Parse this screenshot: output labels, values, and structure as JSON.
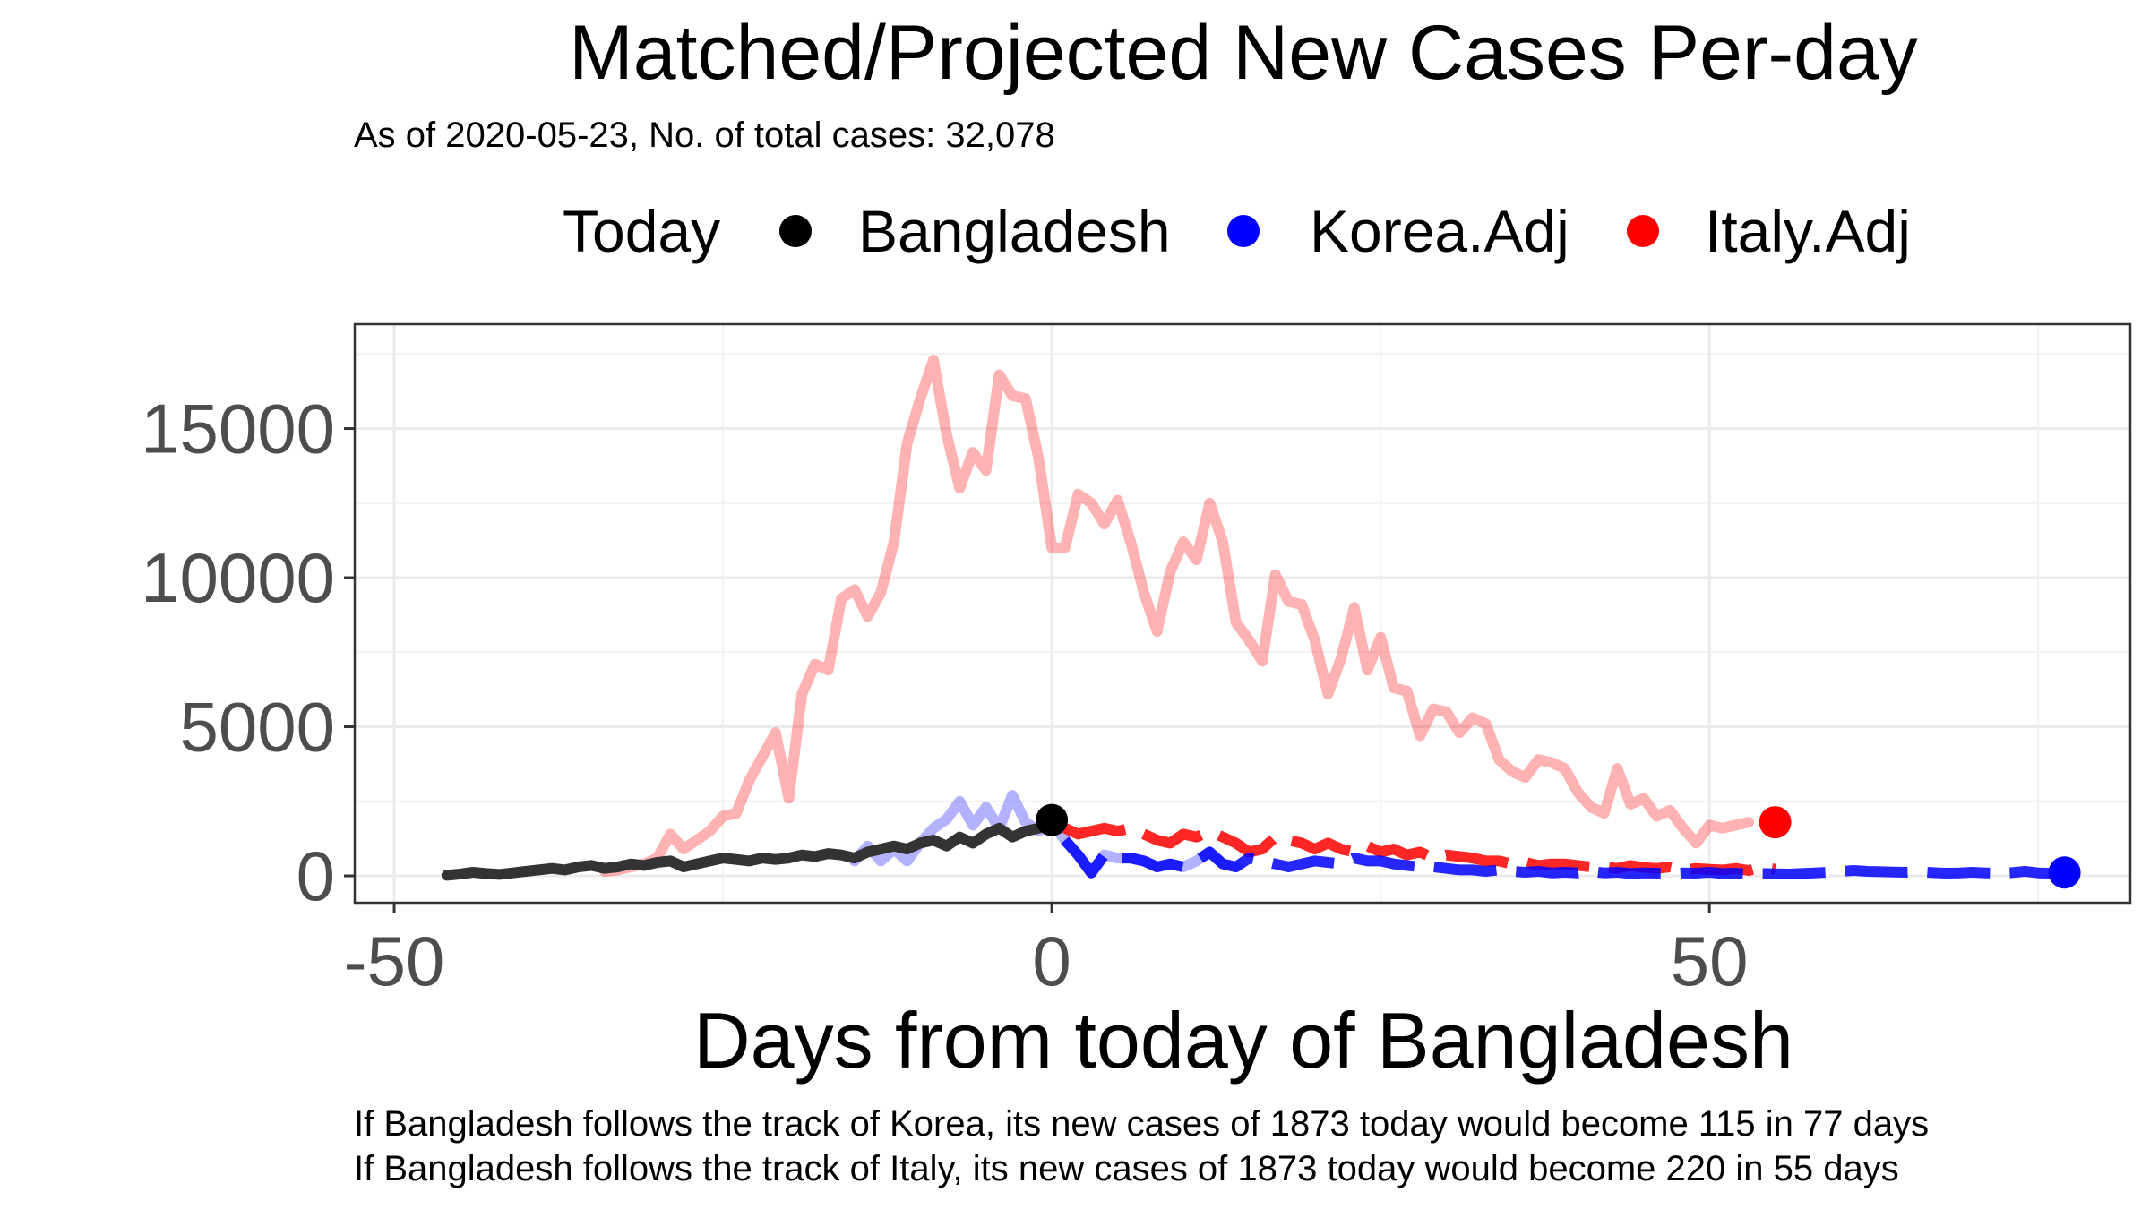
{
  "chart_data": {
    "type": "line",
    "title": "Matched/Projected New Cases Per-day",
    "subtitle": "As of 2020-05-23, No. of total cases: 32,078",
    "xlabel": "Days from today of Bangladesh",
    "ylabel": "",
    "xlim": [
      -53,
      82
    ],
    "ylim": [
      -900,
      18500
    ],
    "x_ticks": [
      -50,
      0,
      50
    ],
    "x_tick_labels": [
      "-50",
      "0",
      "50"
    ],
    "y_ticks": [
      0,
      5000,
      10000,
      15000
    ],
    "y_tick_labels": [
      "0",
      "5000",
      "10000",
      "15000"
    ],
    "grid": true,
    "legend": {
      "title": "Today",
      "position": "top",
      "items": [
        {
          "label": "Bangladesh",
          "color": "#000000"
        },
        {
          "label": "Korea.Adj",
          "color": "#0000ff"
        },
        {
          "label": "Italy.Adj",
          "color": "#ff0000"
        }
      ]
    },
    "series": [
      {
        "name": "Italy.Adj",
        "color": "#ff0000",
        "matched_x": [
          -34,
          -33,
          -32,
          -31,
          -30,
          -29,
          -28,
          -27,
          -26,
          -25,
          -24,
          -23,
          -22,
          -21,
          -20,
          -19,
          -18,
          -17,
          -16,
          -15,
          -14,
          -13,
          -12,
          -11,
          -10,
          -9,
          -8,
          -7,
          -6,
          -5,
          -4,
          -3,
          -2,
          -1,
          0,
          1,
          2,
          3,
          4,
          5,
          6,
          7,
          8,
          9,
          10,
          11,
          12,
          13,
          14,
          15,
          16,
          17,
          18,
          19,
          20,
          21,
          22,
          23,
          24,
          25,
          26,
          27,
          28,
          29,
          30,
          31,
          32,
          33,
          34,
          35,
          36,
          37,
          38,
          39,
          40,
          41,
          42,
          43,
          44,
          45,
          46,
          47,
          48,
          49,
          50,
          51,
          52,
          53,
          54,
          55
        ],
        "matched_y": [
          150,
          200,
          300,
          400,
          600,
          1400,
          900,
          1200,
          1500,
          2000,
          2100,
          3200,
          4000,
          4800,
          2600,
          6100,
          7100,
          6900,
          9300,
          9600,
          8700,
          9500,
          11200,
          14500,
          16000,
          17300,
          14800,
          13000,
          14200,
          13600,
          16800,
          16100,
          16000,
          14000,
          11000,
          11000,
          12800,
          12500,
          11800,
          12600,
          11200,
          9500,
          8200,
          10200,
          11200,
          10600,
          12500,
          11200,
          8500,
          7900,
          7200,
          10100,
          9200,
          9100,
          7900,
          6100,
          7300,
          9000,
          6900,
          8000,
          6300,
          6200,
          4700,
          5600,
          5500,
          4800,
          5300,
          5100,
          3900,
          3500,
          3300,
          3900,
          3800,
          3600,
          2800,
          2300,
          2100,
          3600,
          2400,
          2600,
          2000,
          2200,
          1600,
          1100,
          1700,
          1600,
          1700,
          1800
        ],
        "projected_x": [
          1,
          2,
          3,
          4,
          5,
          6,
          7,
          8,
          9,
          10,
          11,
          12,
          13,
          14,
          15,
          16,
          17,
          18,
          19,
          20,
          21,
          22,
          23,
          24,
          25,
          26,
          27,
          28,
          29,
          30,
          31,
          32,
          33,
          34,
          35,
          36,
          37,
          38,
          39,
          40,
          41,
          42,
          43,
          44,
          45,
          46,
          47,
          48,
          49,
          50,
          51,
          52,
          53,
          54,
          55
        ],
        "projected_y": [
          1600,
          1400,
          1500,
          1600,
          1500,
          1600,
          1400,
          1200,
          1100,
          1400,
          1300,
          1500,
          1300,
          1100,
          800,
          900,
          1300,
          1200,
          1100,
          900,
          1100,
          900,
          800,
          1000,
          800,
          900,
          700,
          800,
          600,
          700,
          650,
          600,
          500,
          500,
          400,
          450,
          350,
          400,
          400,
          350,
          300,
          300,
          250,
          350,
          280,
          250,
          300,
          200,
          250,
          220,
          200,
          250,
          180,
          300,
          220
        ],
        "today_x": 55,
        "today_y": 1800
      },
      {
        "name": "Korea.Adj",
        "color": "#0000ff",
        "matched_x": [
          -15,
          -14,
          -13,
          -12,
          -11,
          -10,
          -9,
          -8,
          -7,
          -6,
          -5,
          -4,
          -3,
          -2,
          -1,
          0,
          1,
          2,
          3,
          4,
          5,
          6,
          7,
          8,
          9,
          10,
          11,
          12,
          13,
          14
        ],
        "matched_y": [
          500,
          1000,
          500,
          900,
          500,
          1100,
          1600,
          1900,
          2500,
          1700,
          2300,
          1600,
          2700,
          1800,
          1500,
          1800,
          1200,
          700,
          100,
          700,
          600,
          600,
          500,
          300,
          400,
          300,
          500,
          800,
          400,
          300
        ],
        "projected_x": [
          1,
          2,
          3,
          4,
          5,
          6,
          7,
          8,
          9,
          10,
          11,
          12,
          13,
          14,
          15,
          16,
          17,
          18,
          19,
          20,
          21,
          22,
          23,
          24,
          25,
          26,
          27,
          28,
          29,
          30,
          31,
          32,
          33,
          34,
          35,
          36,
          37,
          38,
          39,
          40,
          41,
          42,
          43,
          44,
          45,
          46,
          47,
          48,
          49,
          50,
          51,
          52,
          53,
          54,
          55,
          56,
          57,
          58,
          59,
          60,
          61,
          62,
          63,
          64,
          65,
          66,
          67,
          68,
          69,
          70,
          71,
          72,
          73,
          74,
          75,
          76,
          77
        ],
        "projected_y": [
          1200,
          700,
          100,
          700,
          600,
          600,
          500,
          300,
          400,
          300,
          500,
          800,
          400,
          300,
          600,
          500,
          400,
          300,
          400,
          500,
          450,
          400,
          600,
          500,
          500,
          400,
          350,
          300,
          300,
          250,
          200,
          200,
          150,
          200,
          150,
          120,
          150,
          100,
          120,
          100,
          150,
          100,
          120,
          80,
          100,
          90,
          80,
          100,
          90,
          120,
          80,
          90,
          60,
          80,
          70,
          60,
          80,
          100,
          120,
          150,
          180,
          150,
          140,
          130,
          120,
          140,
          110,
          90,
          100,
          120,
          100,
          90,
          110,
          150,
          100,
          90,
          100
        ],
        "today_x": 77,
        "today_y": 115
      },
      {
        "name": "Bangladesh",
        "color": "#000000",
        "matched_x": [
          -46,
          -45,
          -44,
          -43,
          -42,
          -41,
          -40,
          -39,
          -38,
          -37,
          -36,
          -35,
          -34,
          -33,
          -32,
          -31,
          -30,
          -29,
          -28,
          -27,
          -26,
          -25,
          -24,
          -23,
          -22,
          -21,
          -20,
          -19,
          -18,
          -17,
          -16,
          -15,
          -14,
          -13,
          -12,
          -11,
          -10,
          -9,
          -8,
          -7,
          -6,
          -5,
          -4,
          -3,
          -2,
          -1,
          0
        ],
        "matched_y": [
          20,
          60,
          120,
          80,
          50,
          100,
          150,
          200,
          250,
          200,
          300,
          350,
          250,
          300,
          400,
          350,
          450,
          500,
          300,
          400,
          500,
          600,
          550,
          500,
          600,
          550,
          600,
          700,
          650,
          750,
          700,
          600,
          800,
          900,
          1000,
          900,
          1100,
          1200,
          1000,
          1300,
          1100,
          1400,
          1600,
          1300,
          1500,
          1600,
          1873
        ],
        "today_x": 0,
        "today_y": 1873
      }
    ],
    "captions": [
      "If Bangladesh follows the track of Korea, its new cases of 1873 today would become 115 in 77 days",
      "If Bangladesh follows the track of Italy, its new cases of 1873 today would become 220 in 55 days"
    ]
  }
}
